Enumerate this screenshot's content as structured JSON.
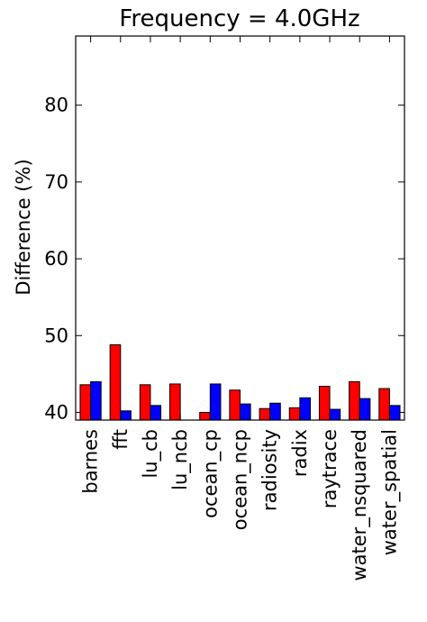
{
  "chart_data": {
    "type": "bar",
    "title": "Frequency = 4.0GHz",
    "xlabel": "",
    "ylabel": "Difference (%)",
    "ylim": [
      39,
      89
    ],
    "yticks": [
      40,
      50,
      60,
      70,
      80
    ],
    "grid": false,
    "categories": [
      "barnes",
      "fft",
      "lu_cb",
      "lu_ncb",
      "ocean_cp",
      "ocean_ncp",
      "radiosity",
      "radix",
      "raytrace",
      "water_nsquared",
      "water_spatial"
    ],
    "series": [
      {
        "color": "#ff0000",
        "values": [
          43.6,
          48.8,
          43.6,
          43.7,
          40.0,
          42.9,
          40.5,
          40.6,
          43.4,
          44.0,
          43.1
        ]
      },
      {
        "color": "#0000ff",
        "values": [
          44.0,
          40.2,
          40.9,
          39.0,
          43.7,
          41.1,
          41.2,
          41.9,
          40.4,
          41.8,
          40.9
        ]
      }
    ]
  }
}
